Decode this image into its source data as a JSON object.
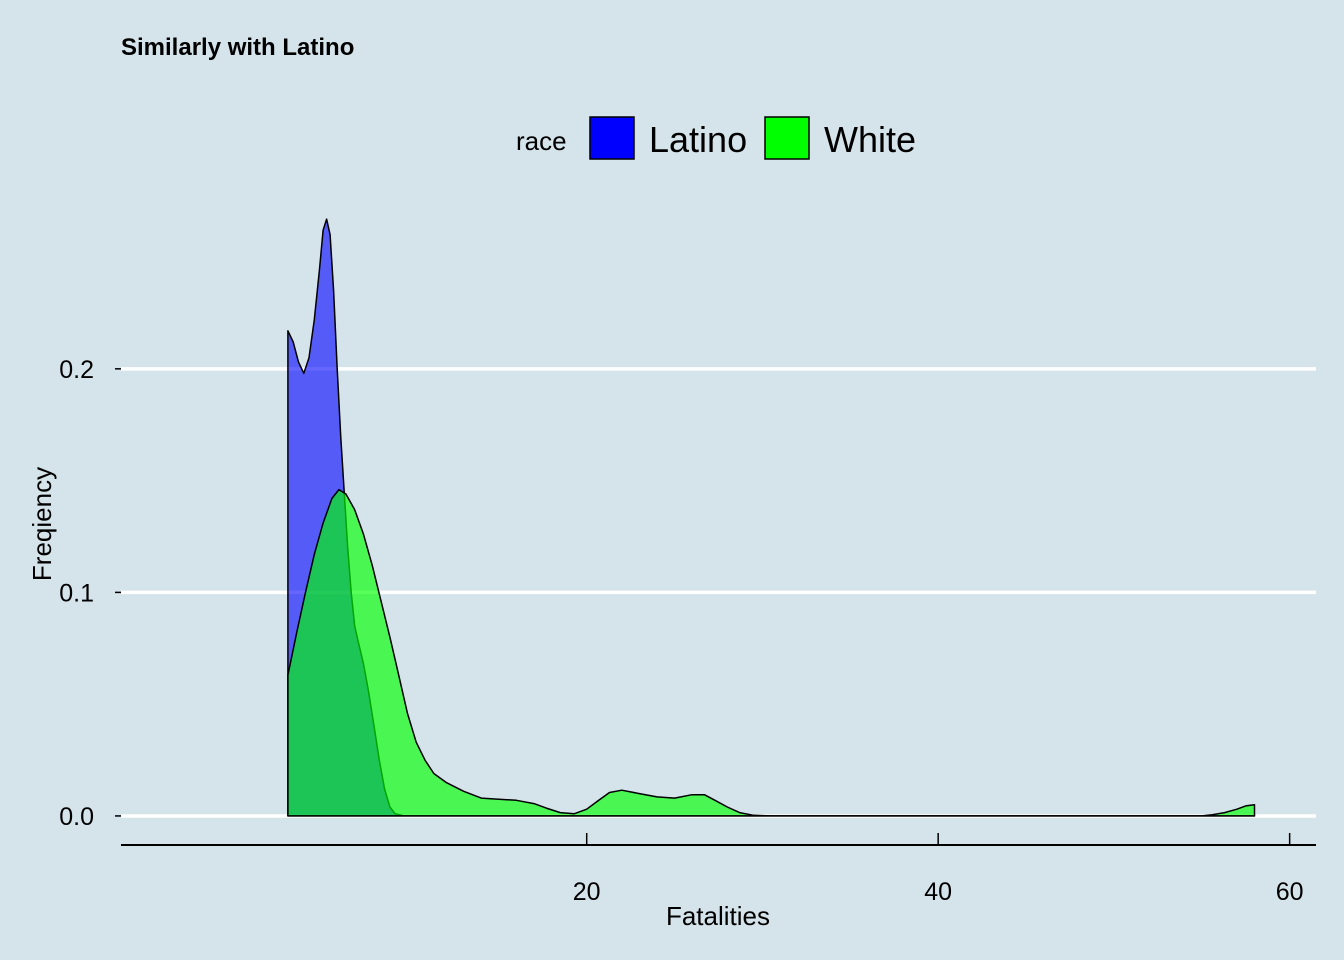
{
  "chart_data": {
    "type": "area",
    "title": "Similarly with Latino",
    "xlabel": "Fatalities",
    "ylabel": "Freqiency",
    "xlim": [
      -6.5,
      61.5
    ],
    "ylim": [
      -0.013,
      0.28
    ],
    "x_ticks": [
      20,
      40,
      60
    ],
    "y_ticks": [
      0.0,
      0.1,
      0.2
    ],
    "y_tick_labels": [
      "0.0",
      "0.1",
      "0.2"
    ],
    "grid": "horizontal-major",
    "legend": {
      "title": "race",
      "position": "top",
      "entries": [
        "Latino",
        "White"
      ]
    },
    "series": [
      {
        "name": "Latino",
        "color": "#0000ff",
        "fill_opacity": 0.6,
        "points": [
          [
            3,
            0.217
          ],
          [
            3.3,
            0.212
          ],
          [
            3.6,
            0.203
          ],
          [
            3.9,
            0.198
          ],
          [
            4.2,
            0.205
          ],
          [
            4.5,
            0.222
          ],
          [
            4.8,
            0.245
          ],
          [
            5.0,
            0.262
          ],
          [
            5.2,
            0.267
          ],
          [
            5.4,
            0.26
          ],
          [
            5.6,
            0.235
          ],
          [
            5.8,
            0.2
          ],
          [
            6.0,
            0.17
          ],
          [
            6.2,
            0.145
          ],
          [
            6.4,
            0.12
          ],
          [
            6.6,
            0.1
          ],
          [
            6.8,
            0.085
          ],
          [
            7.0,
            0.078
          ],
          [
            7.3,
            0.068
          ],
          [
            7.6,
            0.055
          ],
          [
            7.9,
            0.04
          ],
          [
            8.2,
            0.025
          ],
          [
            8.5,
            0.012
          ],
          [
            8.8,
            0.004
          ],
          [
            9.1,
            0.001
          ],
          [
            9.6,
            0.0
          ],
          [
            58,
            0.0
          ]
        ]
      },
      {
        "name": "White",
        "color": "#00ff00",
        "fill_opacity": 0.65,
        "points": [
          [
            3,
            0.063
          ],
          [
            3.5,
            0.082
          ],
          [
            4,
            0.1
          ],
          [
            4.5,
            0.117
          ],
          [
            5,
            0.131
          ],
          [
            5.5,
            0.142
          ],
          [
            5.9,
            0.146
          ],
          [
            6.3,
            0.144
          ],
          [
            6.8,
            0.137
          ],
          [
            7.3,
            0.126
          ],
          [
            7.8,
            0.112
          ],
          [
            8.3,
            0.096
          ],
          [
            8.8,
            0.08
          ],
          [
            9.3,
            0.063
          ],
          [
            9.8,
            0.046
          ],
          [
            10.3,
            0.033
          ],
          [
            10.8,
            0.025
          ],
          [
            11.3,
            0.019
          ],
          [
            12,
            0.015
          ],
          [
            13,
            0.011
          ],
          [
            14,
            0.008
          ],
          [
            15,
            0.0075
          ],
          [
            16,
            0.007
          ],
          [
            17,
            0.0055
          ],
          [
            17.7,
            0.0035
          ],
          [
            18.5,
            0.0015
          ],
          [
            19.3,
            0.001
          ],
          [
            20,
            0.003
          ],
          [
            20.6,
            0.0065
          ],
          [
            21.3,
            0.0105
          ],
          [
            22,
            0.0115
          ],
          [
            23,
            0.01
          ],
          [
            24,
            0.0085
          ],
          [
            25,
            0.008
          ],
          [
            26,
            0.0095
          ],
          [
            26.7,
            0.0095
          ],
          [
            27.3,
            0.007
          ],
          [
            28,
            0.004
          ],
          [
            28.7,
            0.0015
          ],
          [
            29.5,
            0.0003
          ],
          [
            30.5,
            0.0
          ],
          [
            55,
            0.0
          ],
          [
            55.6,
            0.0005
          ],
          [
            56.3,
            0.0015
          ],
          [
            57,
            0.003
          ],
          [
            57.5,
            0.0045
          ],
          [
            58,
            0.005
          ]
        ]
      }
    ]
  }
}
